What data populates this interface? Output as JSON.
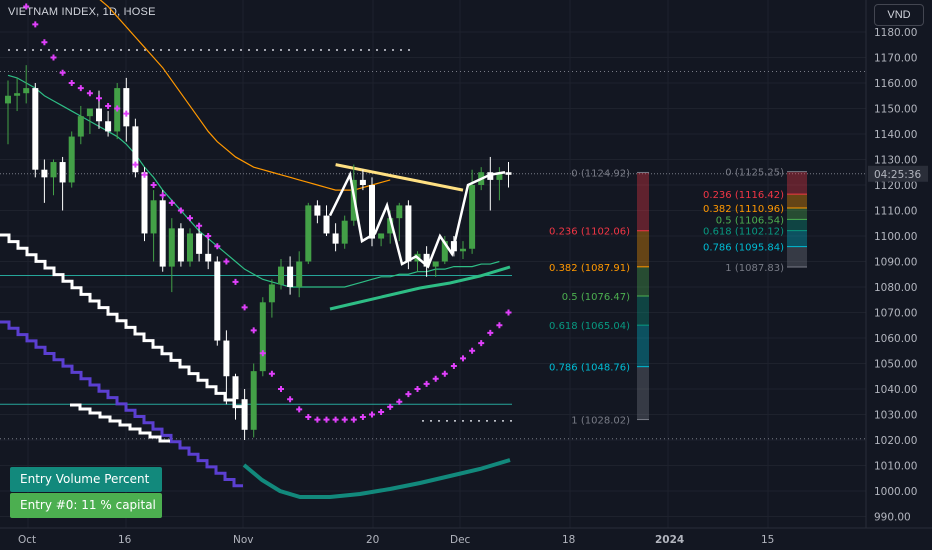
{
  "header": {
    "title": "VIETNAM INDEX, 1D, HOSE",
    "currency_button": "VND"
  },
  "price_axis": {
    "ticks": [
      990,
      1000,
      1010,
      1020,
      1030,
      1040,
      1050,
      1060,
      1070,
      1080,
      1090,
      1100,
      1110,
      1120,
      1130,
      1140,
      1150,
      1160,
      1170,
      1180
    ],
    "tick_labels": [
      "990.00",
      "1000.00",
      "1010.00",
      "1020.00",
      "1030.00",
      "1040.00",
      "1050.00",
      "1060.00",
      "1070.00",
      "1080.00",
      "1090.00",
      "1100.00",
      "1110.00",
      "1120.00",
      "1130.00",
      "1140.00",
      "1150.00",
      "1160.00",
      "1170.00",
      "1180.00"
    ],
    "countdown": "04:25:36"
  },
  "time_axis": {
    "labels": [
      "Oct",
      "16",
      "Nov",
      "20",
      "Dec",
      "18",
      "2024",
      "15"
    ]
  },
  "boxes": {
    "entry_volume": "Entry Volume Percent",
    "entry_0": "Entry #0: 11 % capital"
  },
  "fib_left": {
    "levels": [
      {
        "label": "0 (1124.92)",
        "price": 1124.92,
        "color": "#787b86"
      },
      {
        "label": "0.236 (1102.06)",
        "price": 1102.06,
        "color": "#f23645"
      },
      {
        "label": "0.382 (1087.91)",
        "price": 1087.91,
        "color": "#ff9800"
      },
      {
        "label": "0.5 (1076.47)",
        "price": 1076.47,
        "color": "#4caf50"
      },
      {
        "label": "0.618 (1065.04)",
        "price": 1065.04,
        "color": "#089981"
      },
      {
        "label": "0.786 (1048.76)",
        "price": 1048.76,
        "color": "#00bcd4"
      },
      {
        "label": "1 (1028.02)",
        "price": 1028.02,
        "color": "#787b86"
      }
    ]
  },
  "fib_right": {
    "levels": [
      {
        "label": "0 (1125.25)",
        "price": 1125.25,
        "color": "#787b86"
      },
      {
        "label": "0.236 (1116.42)",
        "price": 1116.42,
        "color": "#f23645"
      },
      {
        "label": "0.382 (1110.96)",
        "price": 1110.96,
        "color": "#ff9800"
      },
      {
        "label": "0.5 (1106.54)",
        "price": 1106.54,
        "color": "#4caf50"
      },
      {
        "label": "0.618 (1102.12)",
        "price": 1102.12,
        "color": "#089981"
      },
      {
        "label": "0.786 (1095.84)",
        "price": 1095.84,
        "color": "#00bcd4"
      },
      {
        "label": "1 (1087.83)",
        "price": 1087.83,
        "color": "#787b86"
      }
    ]
  },
  "chart_data": {
    "type": "candlestick",
    "title": "VIETNAM INDEX, 1D, HOSE",
    "ylim": [
      985,
      1187
    ],
    "candles": [
      {
        "o": 1152,
        "h": 1161,
        "l": 1136,
        "c": 1155
      },
      {
        "o": 1155,
        "h": 1162,
        "l": 1149,
        "c": 1156
      },
      {
        "o": 1156,
        "h": 1167,
        "l": 1152,
        "c": 1158
      },
      {
        "o": 1158,
        "h": 1160,
        "l": 1123,
        "c": 1126
      },
      {
        "o": 1126,
        "h": 1130,
        "l": 1113,
        "c": 1123
      },
      {
        "o": 1123,
        "h": 1130,
        "l": 1116,
        "c": 1129
      },
      {
        "o": 1129,
        "h": 1131,
        "l": 1110,
        "c": 1121
      },
      {
        "o": 1121,
        "h": 1141,
        "l": 1119,
        "c": 1139
      },
      {
        "o": 1139,
        "h": 1151,
        "l": 1136,
        "c": 1147
      },
      {
        "o": 1147,
        "h": 1150,
        "l": 1140,
        "c": 1150
      },
      {
        "o": 1150,
        "h": 1157,
        "l": 1142,
        "c": 1145
      },
      {
        "o": 1145,
        "h": 1149,
        "l": 1139,
        "c": 1141
      },
      {
        "o": 1141,
        "h": 1160,
        "l": 1138,
        "c": 1158
      },
      {
        "o": 1158,
        "h": 1162,
        "l": 1137,
        "c": 1143
      },
      {
        "o": 1143,
        "h": 1146,
        "l": 1123,
        "c": 1125
      },
      {
        "o": 1125,
        "h": 1127,
        "l": 1098,
        "c": 1101
      },
      {
        "o": 1101,
        "h": 1118,
        "l": 1090,
        "c": 1114
      },
      {
        "o": 1114,
        "h": 1118,
        "l": 1086,
        "c": 1088
      },
      {
        "o": 1088,
        "h": 1107,
        "l": 1078,
        "c": 1103
      },
      {
        "o": 1103,
        "h": 1105,
        "l": 1088,
        "c": 1090
      },
      {
        "o": 1090,
        "h": 1103,
        "l": 1088,
        "c": 1101
      },
      {
        "o": 1101,
        "h": 1104,
        "l": 1090,
        "c": 1093
      },
      {
        "o": 1093,
        "h": 1100,
        "l": 1087,
        "c": 1090
      },
      {
        "o": 1090,
        "h": 1092,
        "l": 1057,
        "c": 1059
      },
      {
        "o": 1059,
        "h": 1063,
        "l": 1034,
        "c": 1045
      },
      {
        "o": 1045,
        "h": 1046,
        "l": 1028,
        "c": 1036
      },
      {
        "o": 1036,
        "h": 1040,
        "l": 1020,
        "c": 1024
      },
      {
        "o": 1024,
        "h": 1050,
        "l": 1021,
        "c": 1047
      },
      {
        "o": 1047,
        "h": 1076,
        "l": 1045,
        "c": 1074
      },
      {
        "o": 1074,
        "h": 1083,
        "l": 1068,
        "c": 1081
      },
      {
        "o": 1081,
        "h": 1091,
        "l": 1079,
        "c": 1088
      },
      {
        "o": 1088,
        "h": 1092,
        "l": 1077,
        "c": 1080
      },
      {
        "o": 1080,
        "h": 1094,
        "l": 1076,
        "c": 1090
      },
      {
        "o": 1090,
        "h": 1113,
        "l": 1089,
        "c": 1112
      },
      {
        "o": 1112,
        "h": 1114,
        "l": 1105,
        "c": 1108
      },
      {
        "o": 1108,
        "h": 1112,
        "l": 1100,
        "c": 1101
      },
      {
        "o": 1101,
        "h": 1105,
        "l": 1094,
        "c": 1097
      },
      {
        "o": 1097,
        "h": 1108,
        "l": 1095,
        "c": 1106
      },
      {
        "o": 1106,
        "h": 1128,
        "l": 1104,
        "c": 1122
      },
      {
        "o": 1122,
        "h": 1126,
        "l": 1118,
        "c": 1120
      },
      {
        "o": 1120,
        "h": 1123,
        "l": 1096,
        "c": 1099
      },
      {
        "o": 1099,
        "h": 1101,
        "l": 1096,
        "c": 1101
      },
      {
        "o": 1101,
        "h": 1110,
        "l": 1097,
        "c": 1107
      },
      {
        "o": 1107,
        "h": 1113,
        "l": 1098,
        "c": 1112
      },
      {
        "o": 1112,
        "h": 1114,
        "l": 1087,
        "c": 1090
      },
      {
        "o": 1090,
        "h": 1094,
        "l": 1086,
        "c": 1093
      },
      {
        "o": 1093,
        "h": 1096,
        "l": 1084,
        "c": 1088
      },
      {
        "o": 1088,
        "h": 1090,
        "l": 1084,
        "c": 1090
      },
      {
        "o": 1090,
        "h": 1100,
        "l": 1089,
        "c": 1098
      },
      {
        "o": 1098,
        "h": 1100,
        "l": 1092,
        "c": 1094
      },
      {
        "o": 1094,
        "h": 1098,
        "l": 1091,
        "c": 1095
      },
      {
        "o": 1095,
        "h": 1126,
        "l": 1093,
        "c": 1120
      },
      {
        "o": 1120,
        "h": 1127,
        "l": 1118,
        "c": 1125
      },
      {
        "o": 1125,
        "h": 1131,
        "l": 1110,
        "c": 1122
      },
      {
        "o": 1122,
        "h": 1127,
        "l": 1114,
        "c": 1125
      },
      {
        "o": 1125,
        "h": 1129,
        "l": 1119,
        "c": 1124
      }
    ],
    "horizontal_lines": [
      1084.5,
      1034.0,
      1164.5,
      1020.5
    ],
    "sma_green": [
      1163,
      1162,
      1160,
      1158,
      1155,
      1153,
      1151,
      1149,
      1147,
      1145,
      1143,
      1141,
      1139,
      1136,
      1132,
      1127,
      1123,
      1118,
      1114,
      1110,
      1106,
      1102,
      1099,
      1096,
      1093,
      1090,
      1087,
      1085,
      1083,
      1082,
      1081,
      1080,
      1080,
      1080,
      1080,
      1080,
      1080,
      1080,
      1081,
      1082,
      1083,
      1084,
      1084,
      1085,
      1085,
      1086,
      1086,
      1087,
      1087,
      1088,
      1088,
      1088,
      1089,
      1089,
      1090
    ],
    "sma_orange": [
      1211,
      1208,
      1205,
      1202,
      1199,
      1196,
      1193,
      1190,
      1186,
      1182,
      1178,
      1174,
      1170,
      1166,
      1161,
      1156,
      1151,
      1146,
      1141,
      1137,
      1134,
      1131,
      1129,
      1127,
      1126,
      1125,
      1124,
      1123,
      1122,
      1121,
      1120,
      1119,
      1118,
      1118,
      1118,
      1119,
      1120,
      1121,
      1122
    ],
    "psar": [
      1190,
      1183,
      1176,
      1170,
      1164,
      1160,
      1158,
      1156,
      1154,
      1151,
      1150,
      1148,
      1128,
      1124,
      1120,
      1116,
      1113,
      1110,
      1107,
      1104,
      1100,
      1096,
      1090,
      1082,
      1072,
      1063,
      1054,
      1046,
      1040,
      1036,
      1032,
      1029,
      1028,
      1028,
      1028,
      1028,
      1028,
      1029,
      1030,
      1031,
      1033,
      1035,
      1038,
      1040,
      1042,
      1044,
      1046,
      1049,
      1052,
      1055,
      1058,
      1062,
      1065,
      1070
    ]
  }
}
